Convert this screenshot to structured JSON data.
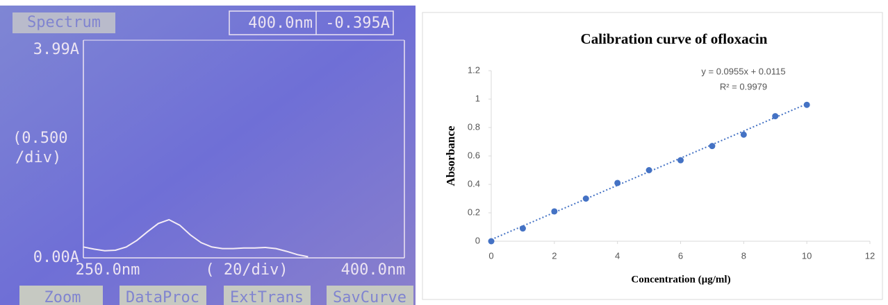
{
  "chart_data": [
    {
      "type": "line",
      "header": {
        "label": "Spectrum",
        "wavelength": "400.0nm",
        "absorbance": "-0.395A"
      },
      "y_scale_label": [
        "(0.500",
        "/div)"
      ],
      "x_scale_label": "( 20/div)",
      "x": [
        250,
        255,
        260,
        265,
        270,
        275,
        280,
        285,
        290,
        295,
        300,
        305,
        310,
        315,
        320,
        325,
        330,
        335,
        340,
        345,
        350,
        355
      ],
      "series": [
        {
          "color": "#f4ecf6",
          "values": [
            0.2,
            0.16,
            0.13,
            0.14,
            0.2,
            0.32,
            0.48,
            0.63,
            0.7,
            0.6,
            0.42,
            0.28,
            0.2,
            0.17,
            0.17,
            0.18,
            0.18,
            0.19,
            0.17,
            0.12,
            0.06,
            0.02
          ]
        }
      ],
      "xlim": [
        250,
        400
      ],
      "xticks": [
        {
          "value": 250,
          "label": "250.0nm"
        },
        {
          "value": 400,
          "label": "400.0nm"
        }
      ],
      "ylim": [
        0,
        3.99
      ],
      "yticks": [
        {
          "value": 0,
          "label": "0.00A"
        },
        {
          "value": 3.99,
          "label": "3.99A"
        }
      ],
      "buttons": [
        "Zoom",
        "DataProc",
        "ExtTrans",
        "SavCurve"
      ]
    },
    {
      "type": "scatter",
      "title": "Calibration curve of ofloxacin",
      "x_label": "Concentration (µg/ml)",
      "y_label": "Absorbance",
      "x": [
        0,
        1,
        2,
        3,
        4,
        5,
        6,
        7,
        8,
        9,
        10
      ],
      "series": [
        {
          "color": "#4472c4",
          "values": [
            0,
            0.09,
            0.21,
            0.3,
            0.41,
            0.5,
            0.57,
            0.67,
            0.75,
            0.88,
            0.96
          ]
        }
      ],
      "trendline": {
        "equation": "y = 0.0955x + 0.0115",
        "r_squared": "R² = 0.9979",
        "slope": 0.0955,
        "intercept": 0.0115
      },
      "xlim": [
        0,
        12
      ],
      "xticks": [
        0,
        2,
        4,
        6,
        8,
        10,
        12
      ],
      "ylim": [
        0,
        1.2
      ],
      "yticks": [
        0,
        0.2,
        0.4,
        0.6,
        0.8,
        1,
        1.2
      ]
    }
  ]
}
